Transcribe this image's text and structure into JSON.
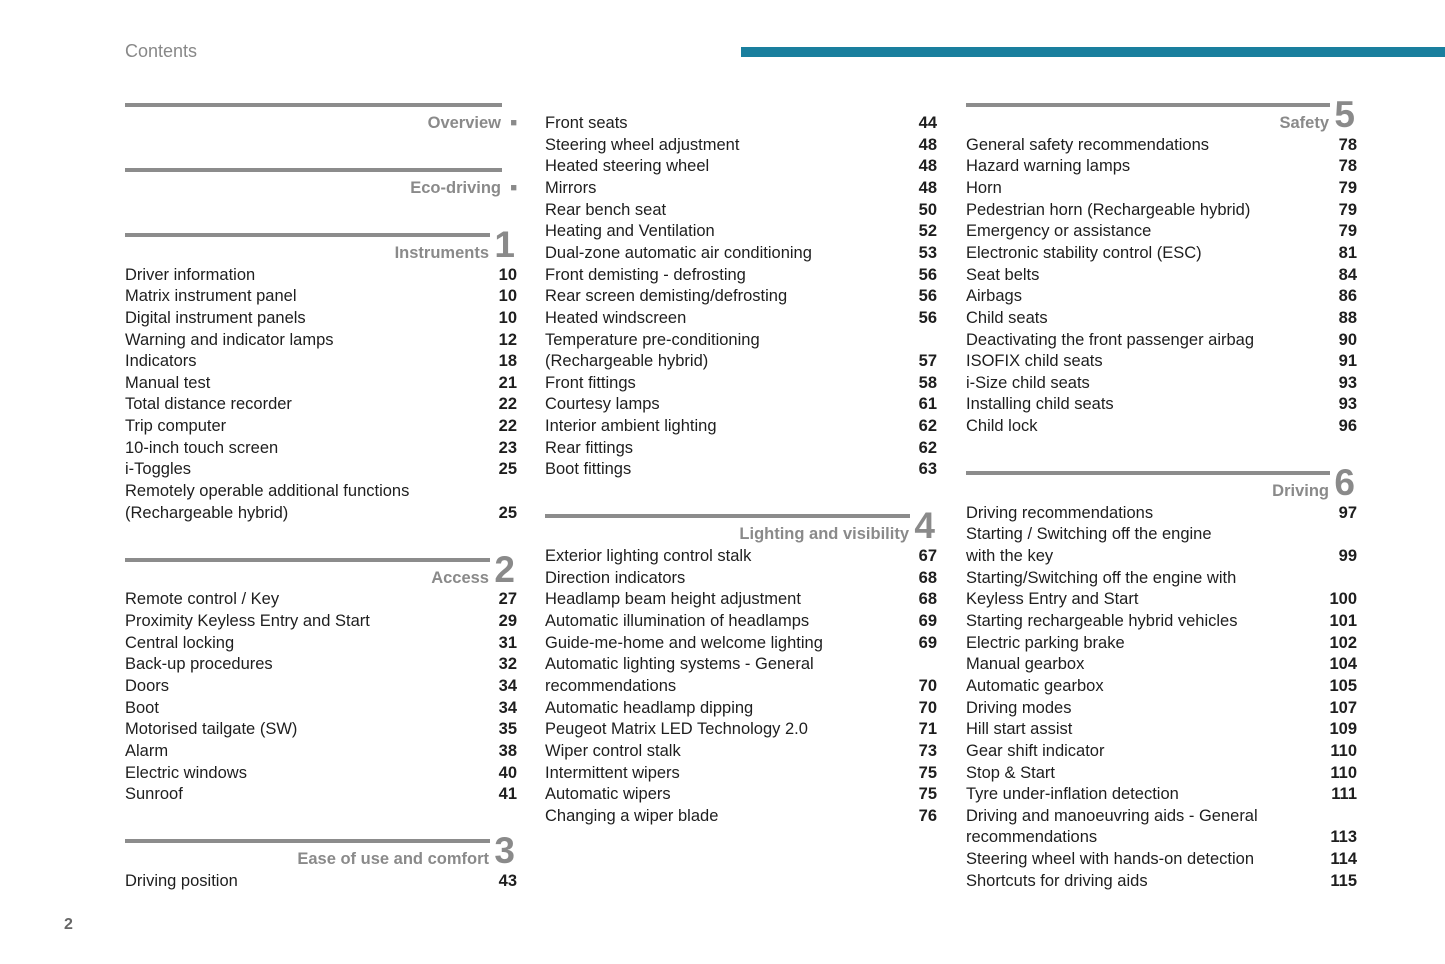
{
  "header": {
    "title": "Contents"
  },
  "page_number": "2",
  "columns": [
    {
      "sections": [
        {
          "title": "Overview",
          "marker": "■",
          "entries": []
        },
        {
          "title": "Eco-driving",
          "marker": "■",
          "entries": []
        },
        {
          "title": "Instruments",
          "number": "1",
          "entries": [
            {
              "text": "Driver information",
              "page": 10
            },
            {
              "text": "Matrix instrument panel",
              "page": 10
            },
            {
              "text": "Digital instrument panels",
              "page": 10
            },
            {
              "text": "Warning and indicator lamps",
              "page": 12
            },
            {
              "text": "Indicators",
              "page": 18
            },
            {
              "text": "Manual test",
              "page": 21
            },
            {
              "text": "Total distance recorder",
              "page": 22
            },
            {
              "text": "Trip computer",
              "page": 22
            },
            {
              "text": "10-inch touch screen",
              "page": 23
            },
            {
              "text": "i-Toggles",
              "page": 25
            },
            {
              "lines": [
                "Remotely operable additional functions",
                "(Rechargeable hybrid)"
              ],
              "page": 25
            }
          ]
        },
        {
          "title": "Access",
          "number": "2",
          "entries": [
            {
              "text": "Remote control / Key",
              "page": 27
            },
            {
              "text": "Proximity Keyless Entry and Start",
              "page": 29
            },
            {
              "text": "Central locking",
              "page": 31
            },
            {
              "text": "Back-up procedures",
              "page": 32
            },
            {
              "text": "Doors",
              "page": 34
            },
            {
              "text": "Boot",
              "page": 34
            },
            {
              "text": "Motorised tailgate (SW)",
              "page": 35
            },
            {
              "text": "Alarm",
              "page": 38
            },
            {
              "text": "Electric windows",
              "page": 40
            },
            {
              "text": "Sunroof",
              "page": 41
            }
          ]
        },
        {
          "title": "Ease of use and comfort",
          "number": "3",
          "entries": [
            {
              "text": "Driving position",
              "page": 43
            }
          ]
        }
      ]
    },
    {
      "sections": [
        {
          "entries": [
            {
              "text": "Front seats",
              "page": 44
            },
            {
              "text": "Steering wheel adjustment",
              "page": 48
            },
            {
              "text": "Heated steering wheel",
              "page": 48
            },
            {
              "text": "Mirrors",
              "page": 48
            },
            {
              "text": "Rear bench seat",
              "page": 50
            },
            {
              "text": "Heating and Ventilation",
              "page": 52
            },
            {
              "text": "Dual-zone automatic air conditioning",
              "page": 53
            },
            {
              "text": "Front demisting - defrosting",
              "page": 56
            },
            {
              "text": "Rear screen demisting/defrosting",
              "page": 56
            },
            {
              "text": "Heated windscreen",
              "page": 56
            },
            {
              "lines": [
                "Temperature pre-conditioning",
                "(Rechargeable hybrid)"
              ],
              "page": 57
            },
            {
              "text": "Front fittings",
              "page": 58
            },
            {
              "text": "Courtesy lamps",
              "page": 61
            },
            {
              "text": "Interior ambient lighting",
              "page": 62
            },
            {
              "text": "Rear fittings",
              "page": 62
            },
            {
              "text": "Boot fittings",
              "page": 63
            }
          ]
        },
        {
          "title": "Lighting and visibility",
          "number": "4",
          "entries": [
            {
              "text": "Exterior lighting control stalk",
              "page": 67
            },
            {
              "text": "Direction indicators",
              "page": 68
            },
            {
              "text": "Headlamp beam height adjustment",
              "page": 68
            },
            {
              "text": "Automatic illumination of headlamps",
              "page": 69
            },
            {
              "text": "Guide-me-home and welcome lighting",
              "page": 69
            },
            {
              "lines": [
                "Automatic lighting systems - General",
                "recommendations"
              ],
              "page": 70
            },
            {
              "text": "Automatic headlamp dipping",
              "page": 70
            },
            {
              "text": "Peugeot Matrix LED Technology 2.0",
              "page": 71
            },
            {
              "text": "Wiper control stalk",
              "page": 73
            },
            {
              "text": "Intermittent wipers",
              "page": 75
            },
            {
              "text": "Automatic wipers",
              "page": 75
            },
            {
              "text": "Changing a wiper blade",
              "page": 76
            }
          ]
        }
      ]
    },
    {
      "sections": [
        {
          "title": "Safety",
          "number": "5",
          "entries": [
            {
              "text": "General safety recommendations",
              "page": 78
            },
            {
              "text": "Hazard warning lamps",
              "page": 78
            },
            {
              "text": "Horn",
              "page": 79
            },
            {
              "text": "Pedestrian horn (Rechargeable hybrid)",
              "page": 79
            },
            {
              "text": "Emergency or assistance",
              "page": 79
            },
            {
              "text": "Electronic stability control (ESC)",
              "page": 81
            },
            {
              "text": "Seat belts",
              "page": 84
            },
            {
              "text": "Airbags",
              "page": 86
            },
            {
              "text": "Child seats",
              "page": 88
            },
            {
              "text": "Deactivating the front passenger airbag",
              "page": 90
            },
            {
              "text": "ISOFIX child seats",
              "page": 91
            },
            {
              "text": "i-Size child seats",
              "page": 93
            },
            {
              "text": "Installing child seats",
              "page": 93
            },
            {
              "text": "Child lock",
              "page": 96
            }
          ]
        },
        {
          "title": "Driving",
          "number": "6",
          "entries": [
            {
              "text": "Driving recommendations",
              "page": 97
            },
            {
              "lines": [
                "Starting / Switching off the engine",
                "with the key"
              ],
              "page": 99
            },
            {
              "lines": [
                "Starting/Switching off the engine with",
                "Keyless Entry and Start"
              ],
              "page": 100
            },
            {
              "text": "Starting rechargeable hybrid vehicles",
              "page": 101
            },
            {
              "text": "Electric parking brake",
              "page": 102
            },
            {
              "text": "Manual gearbox",
              "page": 104
            },
            {
              "text": "Automatic gearbox",
              "page": 105
            },
            {
              "text": "Driving modes",
              "page": 107
            },
            {
              "text": "Hill start assist",
              "page": 109
            },
            {
              "text": "Gear shift indicator",
              "page": 110
            },
            {
              "text": "Stop & Start",
              "page": 110
            },
            {
              "text": "Tyre under-inflation detection",
              "page": 111
            },
            {
              "lines": [
                "Driving and manoeuvring aids - General",
                "recommendations"
              ],
              "page": 113
            },
            {
              "text": "Steering wheel with hands-on detection",
              "page": 114
            },
            {
              "text": "Shortcuts for driving aids",
              "page": 115
            }
          ]
        }
      ]
    }
  ]
}
